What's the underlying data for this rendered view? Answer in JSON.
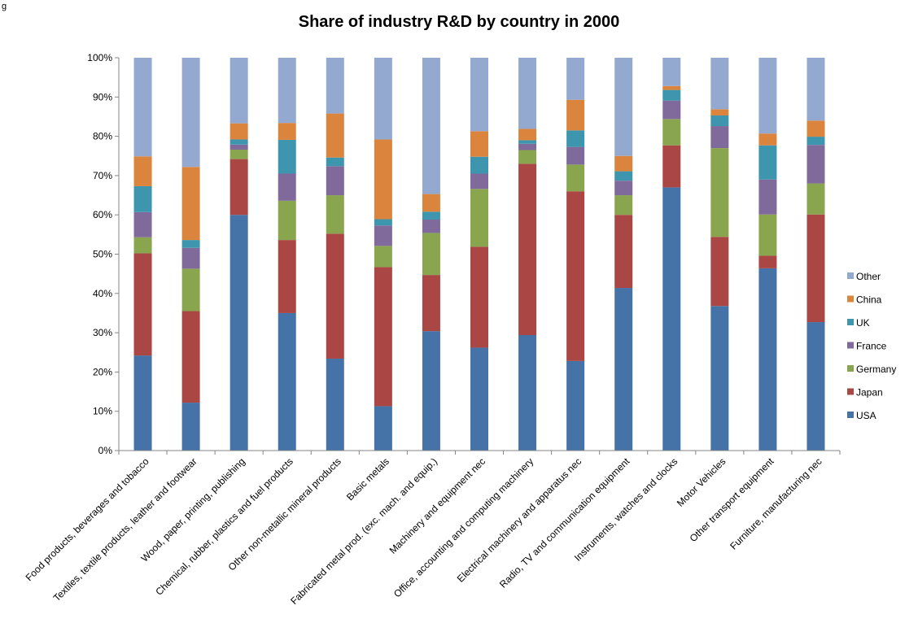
{
  "figure_label": "g",
  "chart_data": {
    "type": "bar",
    "stacked": true,
    "title": "Share of industry R&D by country in 2000",
    "ylim": [
      0,
      100
    ],
    "yticks": [
      0,
      10,
      20,
      30,
      40,
      50,
      60,
      70,
      80,
      90,
      100
    ],
    "ytick_suffix": "%",
    "grid": false,
    "legend_position": "right",
    "categories": [
      "Food products, beverages and tobacco",
      "Textiles, textile products, leather and footwear",
      "Wood, paper, printing, publishing",
      "Chemical, rubber, plastics and fuel products",
      "Other  non-metallic mineral products",
      "Basic metals",
      "Fabricated metal prod. (exc. mach. and equip.)",
      "Machinery and equipment nec",
      "Office, accounting and computing machinery",
      "Electrical machinery and apparatus nec",
      "Radio, TV and communication equipment",
      "Instruments, watches and clocks",
      "Motor Vehicles",
      "Other transport equipment",
      "Furniture, manufacturing nec"
    ],
    "series": [
      {
        "name": "USA",
        "color": "#4572A7",
        "values": [
          24.2,
          12.2,
          60.0,
          35.0,
          23.4,
          11.3,
          30.4,
          26.2,
          29.4,
          22.8,
          41.4,
          67.0,
          36.8,
          46.4,
          32.7
        ]
      },
      {
        "name": "Japan",
        "color": "#AA4643",
        "values": [
          26.0,
          23.3,
          14.2,
          18.6,
          31.8,
          35.4,
          14.3,
          25.7,
          43.6,
          43.2,
          18.6,
          10.7,
          17.6,
          3.2,
          27.4
        ]
      },
      {
        "name": "Germany",
        "color": "#89A54E",
        "values": [
          4.1,
          10.8,
          2.4,
          10.0,
          9.8,
          5.4,
          10.7,
          14.7,
          3.5,
          6.8,
          5.0,
          6.7,
          22.6,
          10.5,
          7.9
        ]
      },
      {
        "name": "France",
        "color": "#80699B",
        "values": [
          6.4,
          5.3,
          1.3,
          6.9,
          7.4,
          5.2,
          3.4,
          3.9,
          1.6,
          4.5,
          3.7,
          4.7,
          5.6,
          8.9,
          9.8
        ]
      },
      {
        "name": "UK",
        "color": "#3D96AE",
        "values": [
          6.6,
          2.0,
          1.3,
          8.6,
          2.2,
          1.6,
          2.0,
          4.3,
          0.9,
          4.2,
          2.4,
          2.7,
          2.7,
          8.7,
          2.1
        ]
      },
      {
        "name": "China",
        "color": "#DB843D",
        "values": [
          7.6,
          18.6,
          4.1,
          4.3,
          11.2,
          20.3,
          4.5,
          6.5,
          2.9,
          7.8,
          3.9,
          1.0,
          1.6,
          3.0,
          4.1
        ]
      },
      {
        "name": "Other",
        "color": "#93A9CF",
        "values": [
          25.1,
          27.8,
          16.7,
          16.6,
          14.2,
          20.8,
          34.7,
          18.7,
          18.1,
          10.7,
          25.0,
          7.2,
          13.1,
          19.3,
          16.0
        ]
      }
    ]
  }
}
